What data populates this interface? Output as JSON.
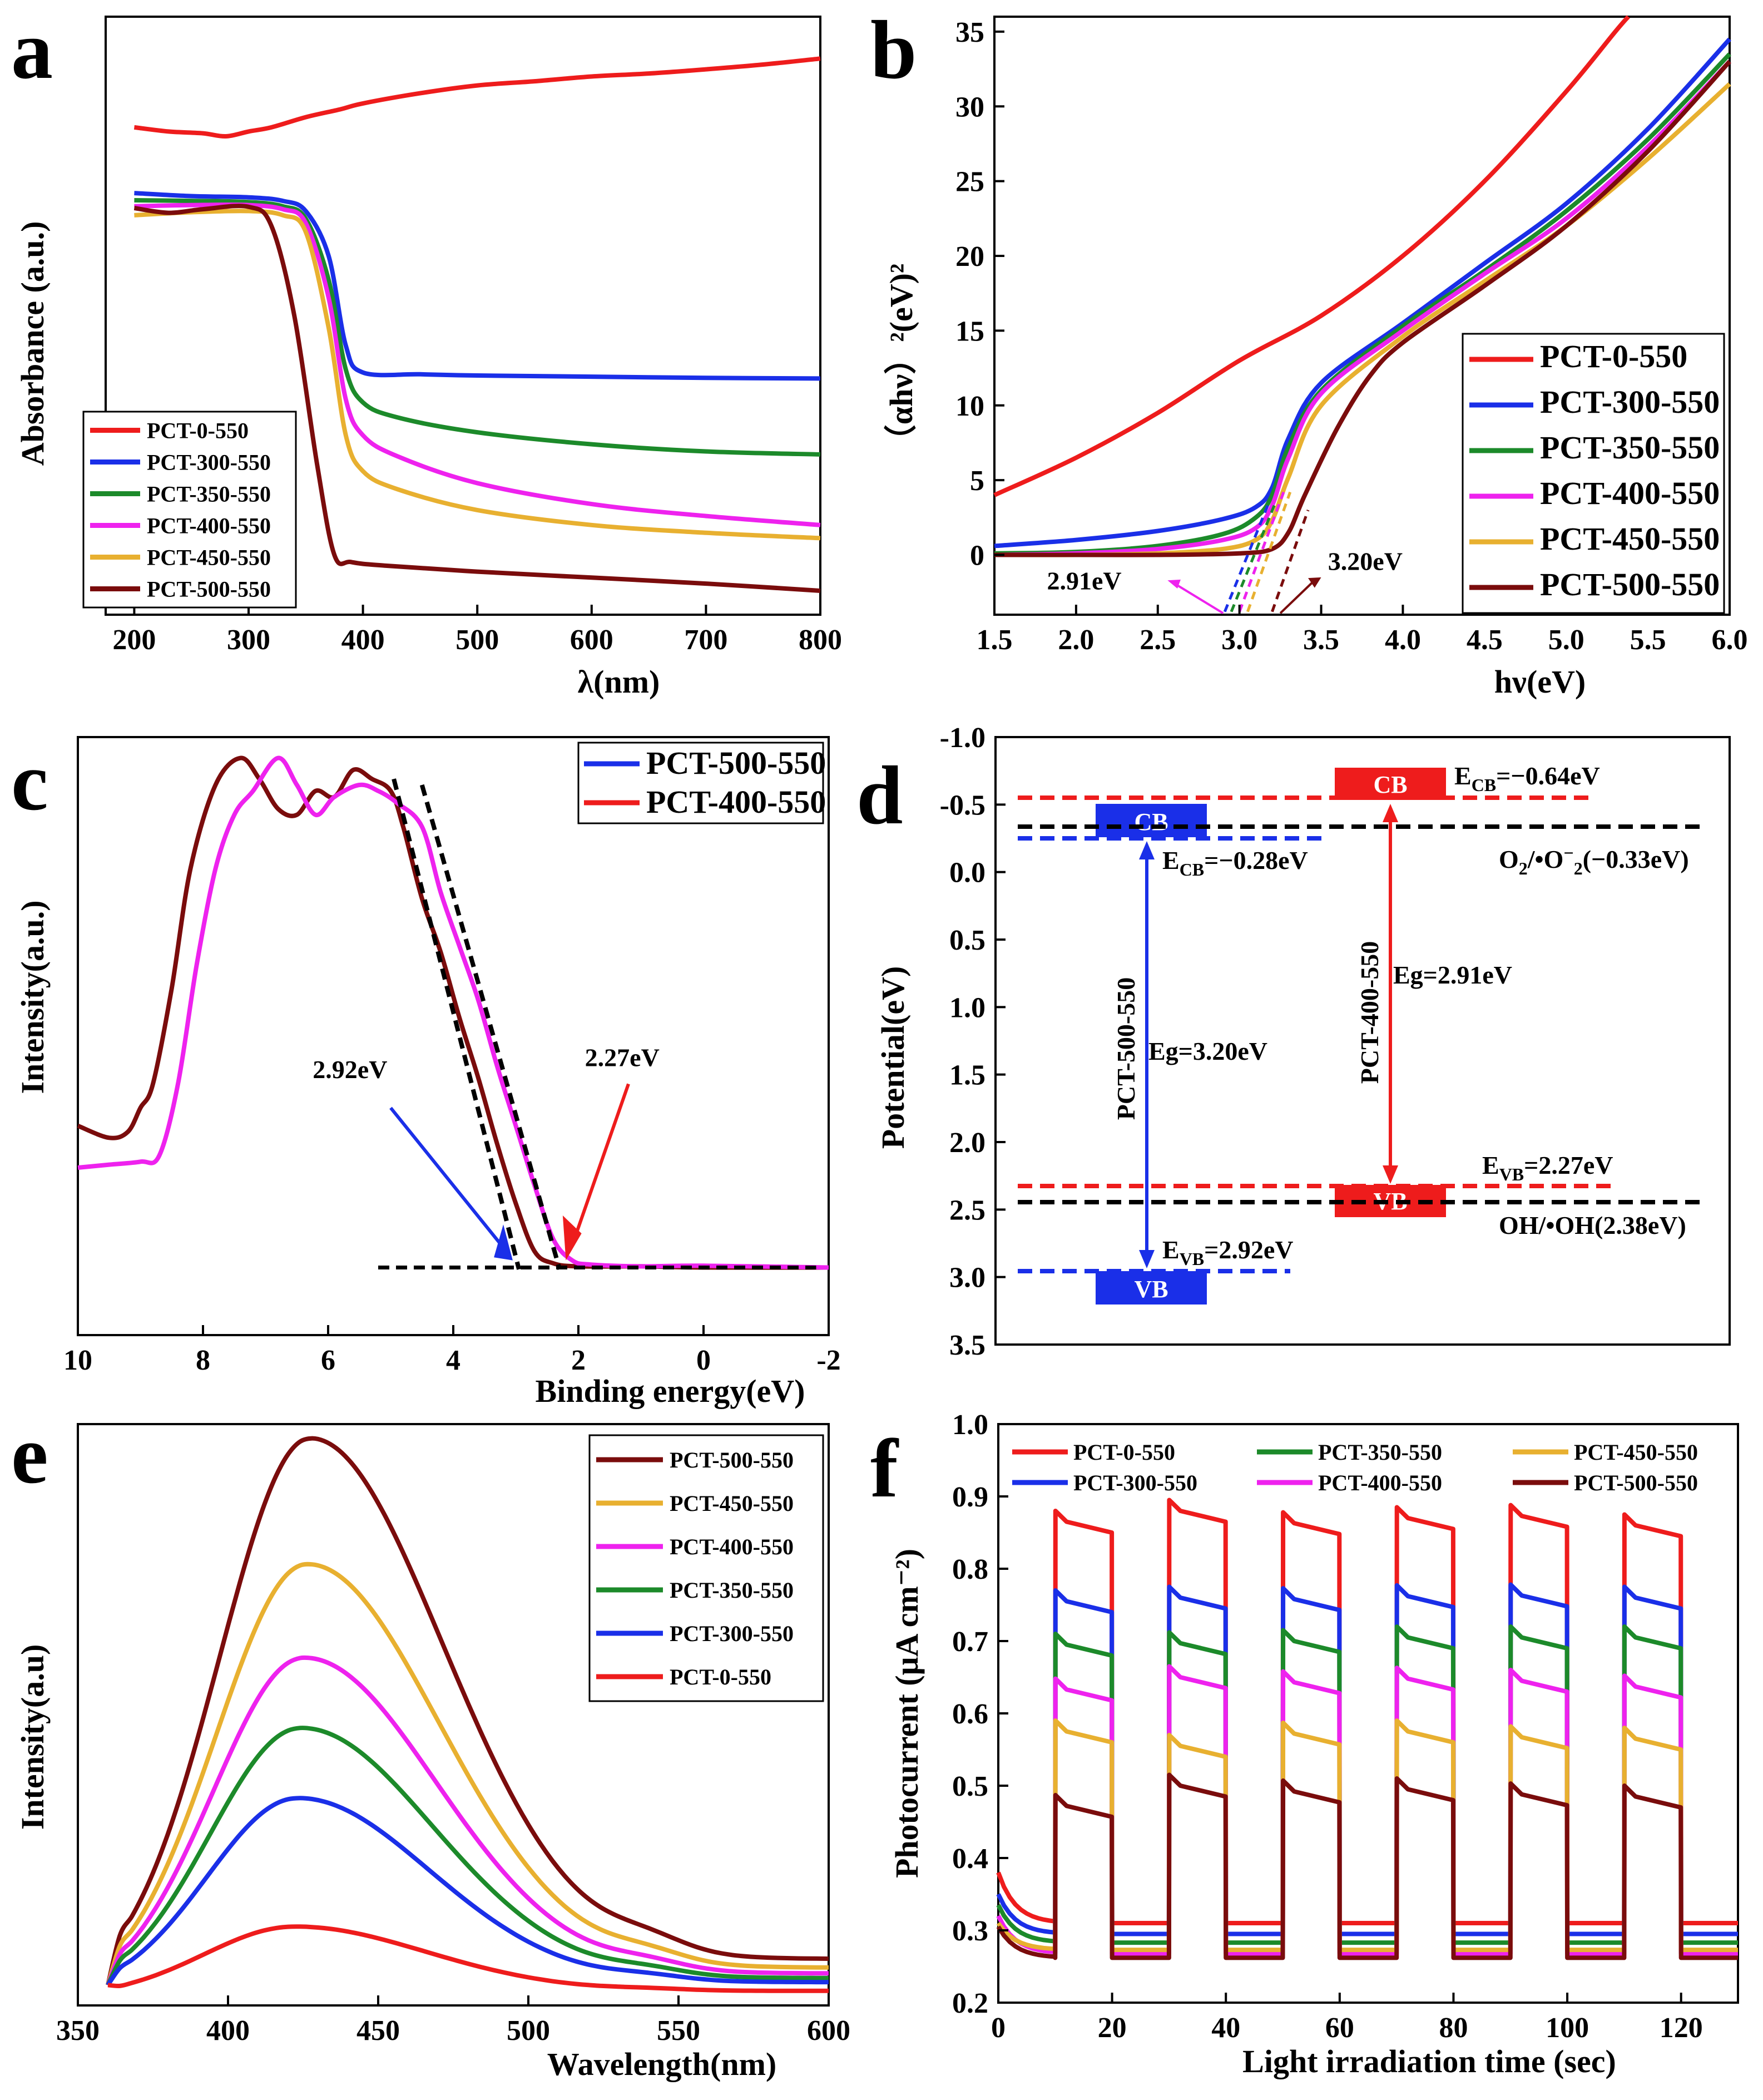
{
  "colors": {
    "PCT-0-550": "#ee1c1c",
    "PCT-300-550": "#1a2fe8",
    "PCT-350-550": "#1c8a2a",
    "PCT-400-550": "#ee22ee",
    "PCT-450-550": "#e8b030",
    "PCT-500-550": "#7a0c0c",
    "black": "#000000"
  },
  "chart_data": [
    {
      "panel": "a",
      "type": "line",
      "xlabel": "λ(nm)",
      "ylabel": "Absorbance (a.u.)",
      "xlim": [
        175,
        800
      ],
      "ylim": [
        0,
        1
      ],
      "xticks": [
        200,
        300,
        400,
        500,
        600,
        700,
        800
      ],
      "legend": [
        "PCT-0-550",
        "PCT-300-550",
        "PCT-350-550",
        "PCT-400-550",
        "PCT-450-550",
        "PCT-500-550"
      ],
      "legend_position": "bottom-left",
      "series": [
        {
          "name": "PCT-0-550",
          "x": [
            200,
            230,
            260,
            280,
            300,
            320,
            350,
            380,
            400,
            450,
            500,
            550,
            600,
            650,
            700,
            750,
            800
          ],
          "y": [
            0.815,
            0.808,
            0.805,
            0.8,
            0.808,
            0.815,
            0.832,
            0.845,
            0.855,
            0.872,
            0.885,
            0.892,
            0.9,
            0.905,
            0.912,
            0.92,
            0.93
          ]
        },
        {
          "name": "PCT-300-550",
          "x": [
            200,
            250,
            300,
            330,
            350,
            370,
            385,
            400,
            450,
            500,
            600,
            700,
            800
          ],
          "y": [
            0.705,
            0.7,
            0.698,
            0.692,
            0.675,
            0.6,
            0.45,
            0.405,
            0.402,
            0.4,
            0.398,
            0.396,
            0.395
          ]
        },
        {
          "name": "PCT-350-550",
          "x": [
            200,
            250,
            300,
            330,
            350,
            370,
            385,
            400,
            430,
            500,
            600,
            700,
            800
          ],
          "y": [
            0.693,
            0.692,
            0.69,
            0.683,
            0.662,
            0.56,
            0.41,
            0.355,
            0.33,
            0.305,
            0.285,
            0.273,
            0.268
          ]
        },
        {
          "name": "PCT-400-550",
          "x": [
            200,
            250,
            300,
            330,
            350,
            370,
            385,
            400,
            430,
            500,
            600,
            700,
            800
          ],
          "y": [
            0.683,
            0.685,
            0.685,
            0.678,
            0.655,
            0.53,
            0.36,
            0.3,
            0.265,
            0.22,
            0.185,
            0.165,
            0.15
          ]
        },
        {
          "name": "PCT-450-550",
          "x": [
            200,
            250,
            300,
            330,
            350,
            370,
            385,
            400,
            430,
            500,
            600,
            700,
            800
          ],
          "y": [
            0.668,
            0.673,
            0.675,
            0.668,
            0.64,
            0.48,
            0.3,
            0.24,
            0.21,
            0.175,
            0.15,
            0.137,
            0.128
          ]
        },
        {
          "name": "PCT-500-550",
          "x": [
            200,
            230,
            260,
            300,
            320,
            340,
            360,
            375,
            390,
            420,
            500,
            600,
            700,
            800
          ],
          "y": [
            0.68,
            0.672,
            0.678,
            0.682,
            0.65,
            0.5,
            0.25,
            0.1,
            0.088,
            0.082,
            0.072,
            0.062,
            0.052,
            0.04
          ]
        }
      ]
    },
    {
      "panel": "b",
      "type": "line",
      "xlabel": "hν(eV)",
      "ylabel": "（αhν）²(eV)²",
      "xlim": [
        1.5,
        6.0
      ],
      "ylim": [
        -4,
        36
      ],
      "xticks": [
        "1.5",
        "2.0",
        "2.5",
        "3.0",
        "3.5",
        "4.0",
        "4.5",
        "5.0",
        "5.5",
        "6.0"
      ],
      "yticks": [
        0,
        5,
        10,
        15,
        20,
        25,
        30,
        35
      ],
      "legend": [
        "PCT-0-550",
        "PCT-300-550",
        "PCT-350-550",
        "PCT-400-550",
        "PCT-450-550",
        "PCT-500-550"
      ],
      "legend_position": "right",
      "annotations": [
        "2.91eV",
        "3.20eV"
      ],
      "series": [
        {
          "name": "PCT-0-550",
          "x": [
            1.5,
            2.0,
            2.5,
            3.0,
            3.5,
            4.0,
            4.5,
            5.0,
            5.3,
            5.38
          ],
          "y": [
            4,
            6.5,
            9.5,
            13,
            16,
            20,
            25,
            31,
            35,
            36
          ]
        },
        {
          "name": "PCT-300-550",
          "x": [
            1.5,
            2.0,
            2.5,
            2.9,
            3.1,
            3.2,
            3.3,
            3.5,
            4.0,
            4.5,
            5.0,
            5.5,
            6.0
          ],
          "y": [
            0.6,
            1.0,
            1.6,
            2.4,
            3.2,
            4.5,
            7.8,
            11.5,
            15.5,
            19.5,
            23.5,
            28.5,
            34.5
          ]
        },
        {
          "name": "PCT-350-550",
          "x": [
            1.5,
            2.0,
            2.5,
            2.9,
            3.1,
            3.2,
            3.3,
            3.5,
            4.0,
            4.5,
            5.0,
            5.5,
            6.0
          ],
          "y": [
            0.1,
            0.2,
            0.6,
            1.4,
            2.5,
            4.0,
            7.2,
            11.0,
            15.3,
            19.0,
            23.0,
            27.8,
            33.5
          ]
        },
        {
          "name": "PCT-400-550",
          "x": [
            1.5,
            2.0,
            2.5,
            2.9,
            3.1,
            3.2,
            3.3,
            3.5,
            4.0,
            4.5,
            5.0,
            5.5,
            6.0
          ],
          "y": [
            0,
            0.1,
            0.4,
            1.0,
            1.8,
            3.3,
            6.5,
            10.8,
            15.0,
            18.8,
            22.5,
            27.3,
            33
          ]
        },
        {
          "name": "PCT-450-550",
          "x": [
            1.5,
            2.0,
            2.5,
            2.9,
            3.1,
            3.2,
            3.3,
            3.5,
            4.0,
            4.5,
            5.0,
            5.5,
            6.0
          ],
          "y": [
            0,
            0,
            0.1,
            0.4,
            1.0,
            2.3,
            5.2,
            10.0,
            14.6,
            18.3,
            22.0,
            26.5,
            31.5
          ]
        },
        {
          "name": "PCT-500-550",
          "x": [
            1.5,
            2.0,
            2.5,
            3.0,
            3.2,
            3.3,
            3.4,
            3.6,
            3.8,
            4.0,
            4.5,
            5.0,
            5.5,
            6.0
          ],
          "y": [
            0,
            0,
            0,
            0.1,
            0.4,
            1.5,
            4.0,
            8.5,
            12.0,
            14.2,
            18.0,
            22.0,
            27.0,
            33
          ]
        }
      ]
    },
    {
      "panel": "c",
      "type": "line",
      "xlabel": "Binding energy(eV)",
      "ylabel": "Intensity(a.u.)",
      "xlim": [
        10,
        -2
      ],
      "ylim": [
        0,
        1
      ],
      "xticks": [
        10,
        8,
        6,
        4,
        2,
        0,
        -2
      ],
      "legend": [
        "PCT-500-550",
        "PCT-400-550"
      ],
      "legend_position": "top-right",
      "annotations": [
        "2.92eV",
        "2.27eV"
      ],
      "series": [
        {
          "name": "PCT-500-550",
          "x": [
            10,
            9.5,
            9.2,
            9.0,
            8.8,
            8.5,
            8.2,
            7.8,
            7.4,
            7.1,
            6.8,
            6.5,
            6.2,
            5.9,
            5.6,
            5.3,
            5.0,
            4.8,
            4.5,
            4.2,
            3.9,
            3.6,
            3.3,
            3.0,
            2.7,
            2.4,
            2.0,
            1.0,
            0,
            -2
          ],
          "y": [
            0.35,
            0.33,
            0.34,
            0.38,
            0.42,
            0.58,
            0.78,
            0.92,
            0.965,
            0.93,
            0.88,
            0.87,
            0.91,
            0.9,
            0.945,
            0.93,
            0.91,
            0.85,
            0.73,
            0.64,
            0.53,
            0.43,
            0.32,
            0.22,
            0.14,
            0.12,
            0.115,
            0.115,
            0.113,
            0.113
          ]
        },
        {
          "name": "PCT-400-550",
          "x": [
            10,
            9.5,
            9.0,
            8.7,
            8.4,
            8.1,
            7.8,
            7.5,
            7.2,
            6.8,
            6.5,
            6.2,
            5.9,
            5.5,
            5.2,
            4.9,
            4.5,
            4.2,
            3.9,
            3.6,
            3.3,
            3.0,
            2.7,
            2.4,
            2.1,
            1.8,
            1.0,
            0,
            -2
          ],
          "y": [
            0.28,
            0.285,
            0.29,
            0.3,
            0.42,
            0.62,
            0.78,
            0.87,
            0.91,
            0.965,
            0.92,
            0.87,
            0.9,
            0.92,
            0.91,
            0.89,
            0.85,
            0.74,
            0.65,
            0.56,
            0.45,
            0.35,
            0.25,
            0.16,
            0.125,
            0.118,
            0.115,
            0.116,
            0.113
          ]
        }
      ]
    },
    {
      "panel": "d",
      "type": "diagram",
      "ylabel": "Potential(eV)",
      "ylim": [
        -1.0,
        3.5
      ],
      "yticks": [
        "-1.0",
        "-0.5",
        "0.0",
        "0.5",
        "1.0",
        "1.5",
        "2.0",
        "2.5",
        "3.0",
        "3.5"
      ],
      "levels": [
        {
          "name": "PCT-500-550 CB",
          "value": -0.28,
          "color": "#1a2fe8"
        },
        {
          "name": "PCT-500-550 VB",
          "value": 2.92,
          "color": "#1a2fe8"
        },
        {
          "name": "PCT-400-550 CB",
          "value": -0.64,
          "color": "#ee1c1c"
        },
        {
          "name": "PCT-400-550 VB",
          "value": 2.27,
          "color": "#ee1c1c"
        },
        {
          "name": "O2/•O-2",
          "value": -0.33,
          "color": "#000000"
        },
        {
          "name": "OH/•OH",
          "value": 2.38,
          "color": "#000000"
        }
      ],
      "text": {
        "cb": "CB",
        "vb": "VB",
        "pct500": "PCT-500-550",
        "pct400": "PCT-400-550",
        "eg500": "Eg=3.20eV",
        "eg400": "Eg=2.91eV",
        "ecb500": "=−0.28eV",
        "evb500": "=2.92eV",
        "ecb400": "=−0.64eV",
        "evb400": "=2.27eV",
        "o2_a": "O",
        "o2_b": "/•O",
        "o2_c": "−",
        "o2_d": "(−0.33eV)",
        "oh": "OH/•OH(2.38eV)",
        "e": "E",
        "cb_sub": "CB",
        "vb_sub": "VB",
        "two": "2"
      }
    },
    {
      "panel": "e",
      "type": "line",
      "xlabel": "Wavelength(nm)",
      "ylabel": "Intensity(a.u)",
      "xlim": [
        350,
        600
      ],
      "ylim": [
        0,
        1
      ],
      "xticks": [
        350,
        400,
        450,
        500,
        550,
        600
      ],
      "legend": [
        "PCT-500-550",
        "PCT-450-550",
        "PCT-400-550",
        "PCT-350-550",
        "PCT-300-550",
        "PCT-0-550"
      ],
      "legend_position": "top-right",
      "series": [
        {
          "name": "PCT-500-550",
          "peak_x": 427,
          "peak_y": 0.955,
          "tail": 0.065
        },
        {
          "name": "PCT-450-550",
          "peak_x": 426,
          "peak_y": 0.74,
          "tail": 0.05
        },
        {
          "name": "PCT-400-550",
          "peak_x": 425,
          "peak_y": 0.58,
          "tail": 0.04
        },
        {
          "name": "PCT-350-550",
          "peak_x": 424,
          "peak_y": 0.46,
          "tail": 0.032
        },
        {
          "name": "PCT-300-550",
          "peak_x": 423,
          "peak_y": 0.34,
          "tail": 0.025
        },
        {
          "name": "PCT-0-550",
          "peak_x": 422,
          "peak_y": 0.12,
          "tail": 0.01
        }
      ]
    },
    {
      "panel": "f",
      "type": "line",
      "xlabel": "Light irradiation time (sec)",
      "ylabel": "Photocurrent (μA cm⁻²)",
      "xlim": [
        0,
        130
      ],
      "ylim": [
        0.2,
        1.0
      ],
      "xticks": [
        0,
        20,
        40,
        60,
        80,
        100,
        120
      ],
      "yticks": [
        "0.2",
        "0.3",
        "0.4",
        "0.5",
        "0.6",
        "0.7",
        "0.8",
        "0.9",
        "1.0"
      ],
      "on_intervals": [
        [
          10,
          20
        ],
        [
          30,
          40
        ],
        [
          50,
          60
        ],
        [
          70,
          80
        ],
        [
          90,
          100
        ],
        [
          110,
          120
        ]
      ],
      "legend": [
        "PCT-0-550",
        "PCT-300-550",
        "PCT-350-550",
        "PCT-400-550",
        "PCT-450-550",
        "PCT-500-550"
      ],
      "legend_position": "top",
      "series": [
        {
          "name": "PCT-0-550",
          "start": 0.38,
          "dark": 0.31,
          "on_levels": [
            0.86,
            0.875,
            0.858,
            0.865,
            0.868,
            0.855
          ]
        },
        {
          "name": "PCT-300-550",
          "start": 0.35,
          "dark": 0.295,
          "on_levels": [
            0.75,
            0.755,
            0.753,
            0.757,
            0.758,
            0.755
          ]
        },
        {
          "name": "PCT-350-550",
          "start": 0.335,
          "dark": 0.283,
          "on_levels": [
            0.69,
            0.692,
            0.695,
            0.7,
            0.7,
            0.7
          ]
        },
        {
          "name": "PCT-400-550",
          "start": 0.32,
          "dark": 0.268,
          "on_levels": [
            0.628,
            0.645,
            0.638,
            0.643,
            0.64,
            0.632
          ]
        },
        {
          "name": "PCT-450-550",
          "start": 0.31,
          "dark": 0.273,
          "on_levels": [
            0.57,
            0.55,
            0.567,
            0.57,
            0.562,
            0.56
          ]
        },
        {
          "name": "PCT-500-550",
          "start": 0.305,
          "dark": 0.262,
          "on_levels": [
            0.467,
            0.495,
            0.487,
            0.49,
            0.483,
            0.48
          ]
        }
      ]
    }
  ],
  "panels": {
    "a": "a",
    "b": "b",
    "c": "c",
    "d": "d",
    "e": "e",
    "f": "f"
  }
}
